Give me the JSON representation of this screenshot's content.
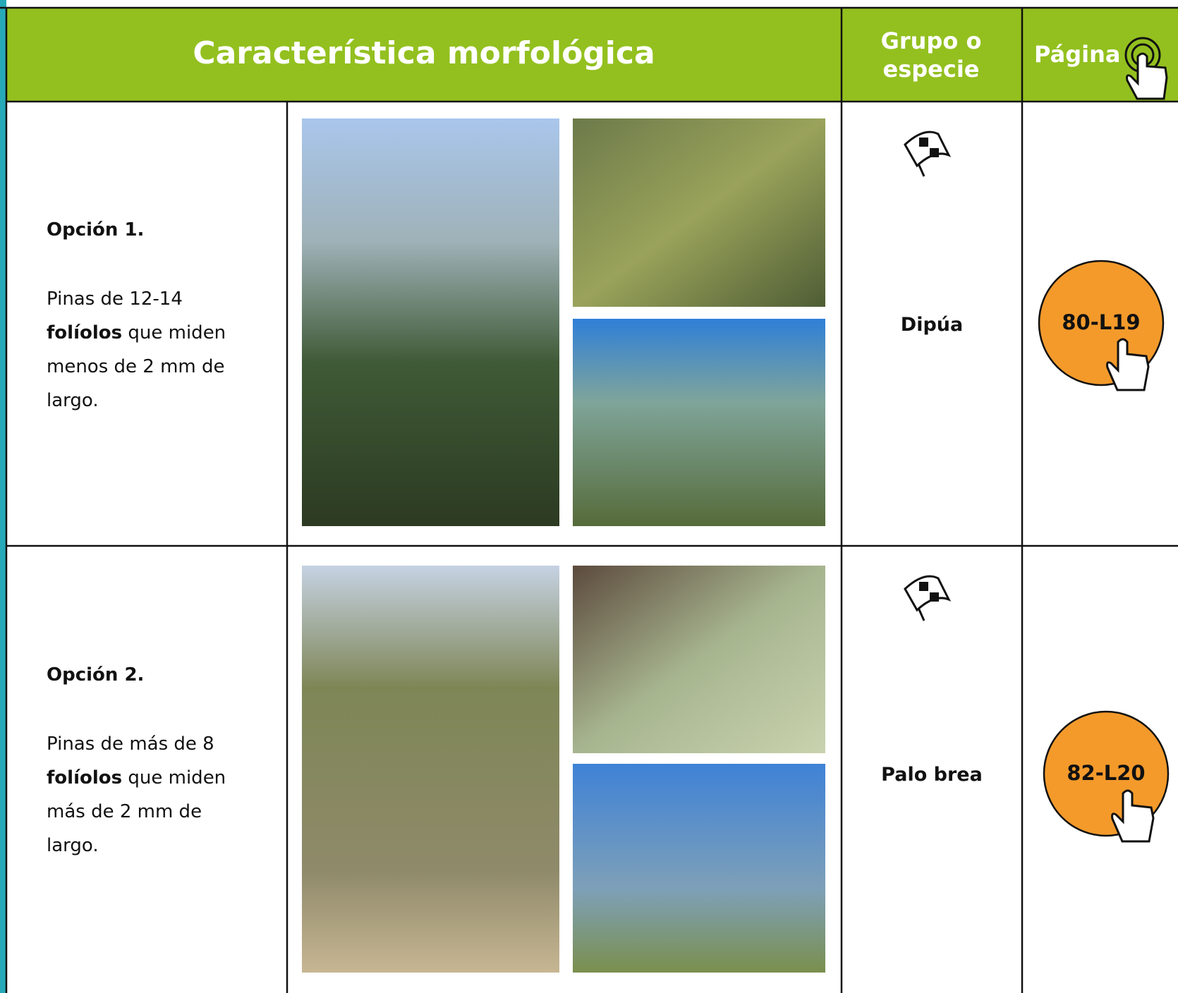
{
  "header": {
    "feature": "Característica morfológica",
    "species": "Grupo o especie",
    "page": "Página"
  },
  "rows": [
    {
      "option": "Opción 1.",
      "text_before": "Pinas de 12-14",
      "bold": "folíolos",
      "text_after": "que miden menos de 2 mm de largo.",
      "species": "Dipúa",
      "page": "80-L19"
    },
    {
      "option": "Opción 2.",
      "text_before": "Pinas de más de 8",
      "bold": "folíolos",
      "text_after": "que miden más de 2 mm de largo.",
      "species": "Palo brea",
      "page": "82-L20"
    }
  ]
}
